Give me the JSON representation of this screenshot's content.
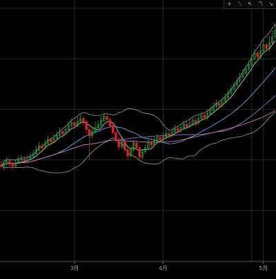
{
  "toolbar": {
    "items": [
      {
        "name": "crosshair-icon",
        "glyph": "+"
      },
      {
        "name": "trend-line-icon",
        "glyph": "⟍"
      },
      {
        "name": "ray-line-icon",
        "glyph": "↖"
      },
      {
        "name": "fibonacci-icon",
        "glyph": "ℸ"
      },
      {
        "name": "arrow-down-right-icon",
        "glyph": "↘"
      }
    ]
  },
  "chart_data": {
    "type": "candlestick",
    "xlabel": "",
    "ylabel": "",
    "x_tick_labels": [
      "3月",
      "4月",
      "5月"
    ],
    "ylim": [
      0,
      100
    ],
    "grid": true,
    "colors": {
      "up": "#2f9e3c",
      "down": "#e0232b",
      "background": "#000000",
      "grid": "#2a2a2a",
      "bollinger": "#9aa0a8",
      "ma_short": "#c8c8c8",
      "ma_medium": "#6fa8dc",
      "ma_long": "#8e7cc3",
      "ma_longest": "#c27ba0"
    },
    "candles": [
      [
        38.0,
        37.6,
        39.6,
        36.8
      ],
      [
        37.6,
        38.6,
        40.2,
        36.2
      ],
      [
        38.6,
        39.6,
        41.2,
        37.6
      ],
      [
        39.6,
        38.8,
        40.0,
        37.0
      ],
      [
        38.8,
        37.6,
        39.2,
        36.0
      ],
      [
        37.6,
        38.8,
        40.4,
        37.2
      ],
      [
        38.8,
        40.0,
        41.6,
        38.4
      ],
      [
        40.0,
        40.4,
        42.0,
        38.8
      ],
      [
        40.4,
        39.6,
        41.6,
        38.4
      ],
      [
        39.6,
        40.0,
        42.0,
        39.2
      ],
      [
        40.0,
        41.2,
        42.8,
        39.6
      ],
      [
        41.2,
        42.4,
        44.0,
        40.8
      ],
      [
        42.4,
        44.0,
        45.6,
        42.0
      ],
      [
        44.0,
        45.6,
        47.2,
        43.2
      ],
      [
        45.6,
        44.8,
        46.8,
        43.2
      ],
      [
        44.8,
        46.4,
        48.0,
        44.0
      ],
      [
        46.4,
        48.0,
        49.6,
        45.6
      ],
      [
        48.0,
        47.2,
        49.2,
        45.6
      ],
      [
        47.2,
        48.4,
        50.0,
        46.8
      ],
      [
        48.4,
        49.6,
        51.2,
        47.6
      ],
      [
        49.6,
        51.2,
        52.8,
        48.8
      ],
      [
        51.2,
        50.4,
        52.4,
        49.2
      ],
      [
        50.4,
        52.0,
        53.6,
        50.0
      ],
      [
        52.0,
        53.6,
        55.2,
        51.2
      ],
      [
        53.6,
        54.8,
        56.4,
        52.8
      ],
      [
        54.8,
        53.6,
        55.6,
        52.0
      ],
      [
        53.6,
        55.2,
        57.2,
        52.8
      ],
      [
        55.2,
        56.4,
        58.0,
        54.4
      ],
      [
        56.4,
        55.2,
        57.6,
        53.6
      ],
      [
        55.2,
        52.0,
        56.0,
        50.4
      ],
      [
        52.0,
        49.6,
        53.2,
        40.0
      ],
      [
        49.6,
        51.2,
        53.2,
        48.4
      ],
      [
        51.2,
        52.8,
        55.2,
        50.4
      ],
      [
        52.8,
        54.0,
        55.6,
        52.4
      ],
      [
        54.0,
        55.6,
        57.2,
        53.2
      ],
      [
        55.6,
        57.2,
        58.8,
        54.8
      ],
      [
        57.2,
        56.0,
        58.8,
        55.2
      ],
      [
        56.0,
        53.6,
        56.8,
        52.8
      ],
      [
        53.6,
        50.8,
        54.4,
        50.0
      ],
      [
        50.8,
        48.0,
        51.6,
        46.8
      ],
      [
        48.0,
        45.2,
        48.8,
        44.0
      ],
      [
        45.2,
        47.2,
        48.8,
        44.4
      ],
      [
        47.2,
        44.0,
        48.0,
        43.2
      ],
      [
        44.0,
        41.6,
        44.8,
        40.4
      ],
      [
        41.6,
        44.0,
        45.2,
        40.8
      ],
      [
        44.0,
        46.8,
        48.0,
        43.2
      ],
      [
        46.8,
        44.8,
        47.6,
        44.0
      ],
      [
        44.8,
        41.2,
        45.6,
        40.0
      ],
      [
        41.2,
        43.2,
        44.4,
        40.4
      ],
      [
        43.2,
        44.8,
        46.0,
        42.4
      ],
      [
        44.8,
        46.8,
        48.4,
        44.0
      ],
      [
        46.8,
        46.0,
        48.0,
        44.8
      ],
      [
        46.0,
        47.6,
        49.2,
        45.2
      ],
      [
        47.6,
        48.8,
        50.4,
        46.8
      ],
      [
        48.8,
        48.0,
        50.0,
        46.8
      ],
      [
        48.0,
        49.2,
        50.8,
        47.2
      ],
      [
        49.2,
        50.4,
        52.0,
        48.4
      ],
      [
        50.4,
        49.6,
        51.6,
        48.4
      ],
      [
        49.6,
        51.2,
        52.8,
        48.8
      ],
      [
        51.2,
        52.4,
        54.0,
        50.4
      ],
      [
        52.4,
        51.6,
        53.6,
        50.4
      ],
      [
        51.6,
        52.8,
        54.4,
        50.8
      ],
      [
        52.8,
        54.0,
        55.6,
        52.0
      ],
      [
        54.0,
        53.2,
        55.2,
        52.0
      ],
      [
        53.2,
        54.4,
        56.0,
        52.4
      ],
      [
        54.4,
        55.6,
        57.2,
        53.6
      ],
      [
        55.6,
        54.8,
        56.8,
        53.6
      ],
      [
        54.8,
        56.4,
        58.0,
        54.0
      ],
      [
        56.4,
        57.6,
        59.2,
        55.6
      ],
      [
        57.6,
        56.8,
        58.8,
        55.6
      ],
      [
        56.8,
        58.4,
        60.0,
        56.0
      ],
      [
        58.4,
        59.6,
        61.2,
        57.6
      ],
      [
        59.6,
        61.2,
        62.8,
        58.8
      ],
      [
        61.2,
        62.4,
        64.0,
        60.4
      ],
      [
        62.4,
        61.6,
        63.6,
        60.4
      ],
      [
        61.6,
        63.2,
        64.8,
        60.8
      ],
      [
        63.2,
        64.8,
        66.4,
        62.4
      ],
      [
        64.8,
        66.4,
        68.0,
        64.0
      ],
      [
        66.4,
        68.0,
        69.6,
        65.6
      ],
      [
        68.0,
        69.6,
        71.2,
        67.2
      ],
      [
        69.6,
        71.2,
        72.8,
        68.8
      ],
      [
        71.2,
        72.8,
        74.4,
        70.4
      ],
      [
        72.8,
        74.4,
        76.0,
        72.0
      ],
      [
        74.4,
        76.0,
        77.6,
        73.6
      ],
      [
        76.0,
        77.6,
        79.2,
        75.2
      ],
      [
        77.6,
        80.0,
        81.6,
        76.8
      ],
      [
        80.0,
        82.4,
        84.0,
        79.2
      ],
      [
        82.4,
        80.8,
        83.2,
        79.2
      ],
      [
        80.8,
        83.2,
        85.6,
        80.0
      ],
      [
        83.2,
        85.6,
        88.0,
        82.4
      ],
      [
        85.6,
        84.0,
        86.4,
        83.2
      ],
      [
        84.0,
        86.4,
        88.8,
        83.2
      ],
      [
        86.4,
        88.8,
        91.2,
        85.6
      ],
      [
        88.8,
        91.2,
        93.6,
        88.0
      ]
    ],
    "x_tick_positions": [
      25,
      55,
      89
    ]
  }
}
